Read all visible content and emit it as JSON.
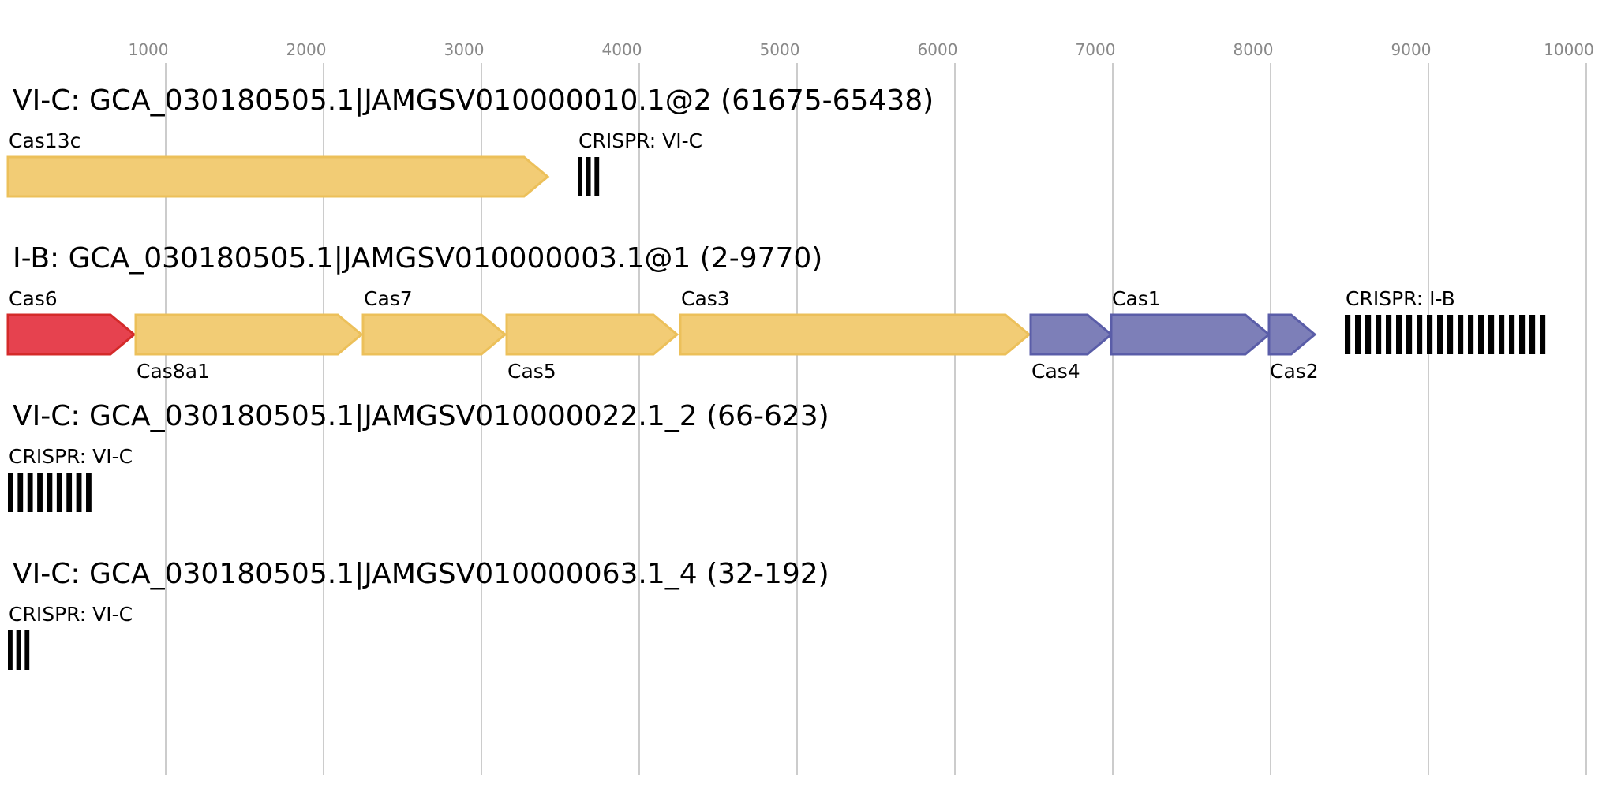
{
  "axis": {
    "ticks": [
      "1000",
      "2000",
      "3000",
      "4000",
      "5000",
      "6000",
      "7000",
      "8000",
      "9000",
      "10000"
    ]
  },
  "colors": {
    "red": "#e6424f",
    "red_stroke": "#d42a2a",
    "yellow": "#f2cc75",
    "yellow_stroke": "#ecc05a",
    "blue": "#7d7fb8",
    "blue_stroke": "#5a5da8",
    "crispr": "#000000"
  },
  "tracks": [
    {
      "title": "VI-C: GCA_030180505.1|JAMGSV010000010.1@2 (61675-65438)",
      "genes": [
        {
          "label": "Cas13c",
          "start": 0,
          "end": 3420,
          "color": "yellow",
          "label_pos": "above"
        }
      ],
      "crisprs": [
        {
          "label": "CRISPR: VI-C",
          "start": 3610,
          "end": 3770,
          "count": 3
        }
      ]
    },
    {
      "title": "I-B: GCA_030180505.1|JAMGSV010000003.1@1 (2-9770)",
      "genes": [
        {
          "label": "Cas6",
          "start": 0,
          "end": 800,
          "color": "red",
          "label_pos": "above"
        },
        {
          "label": "Cas8a1",
          "start": 810,
          "end": 2240,
          "color": "yellow",
          "label_pos": "below"
        },
        {
          "label": "Cas7",
          "start": 2250,
          "end": 3150,
          "color": "yellow",
          "label_pos": "above"
        },
        {
          "label": "Cas5",
          "start": 3160,
          "end": 4240,
          "color": "yellow",
          "label_pos": "below"
        },
        {
          "label": "Cas3",
          "start": 4260,
          "end": 6470,
          "color": "yellow",
          "label_pos": "above"
        },
        {
          "label": "Cas4",
          "start": 6480,
          "end": 6990,
          "color": "blue",
          "label_pos": "below"
        },
        {
          "label": "Cas1",
          "start": 6990,
          "end": 7990,
          "color": "blue",
          "label_pos": "above"
        },
        {
          "label": "Cas2",
          "start": 7990,
          "end": 8280,
          "color": "blue",
          "label_pos": "below"
        }
      ],
      "crisprs": [
        {
          "label": "CRISPR: I-B",
          "start": 8470,
          "end": 9770,
          "count": 20
        }
      ]
    },
    {
      "title": "VI-C: GCA_030180505.1|JAMGSV010000022.1_2 (66-623)",
      "genes": [],
      "crisprs": [
        {
          "label": "CRISPR: VI-C",
          "start": 0,
          "end": 557,
          "count": 9
        }
      ]
    },
    {
      "title": "VI-C: GCA_030180505.1|JAMGSV010000063.1_4 (32-192)",
      "genes": [],
      "crisprs": [
        {
          "label": "CRISPR: VI-C",
          "start": 0,
          "end": 160,
          "count": 3
        }
      ]
    }
  ]
}
